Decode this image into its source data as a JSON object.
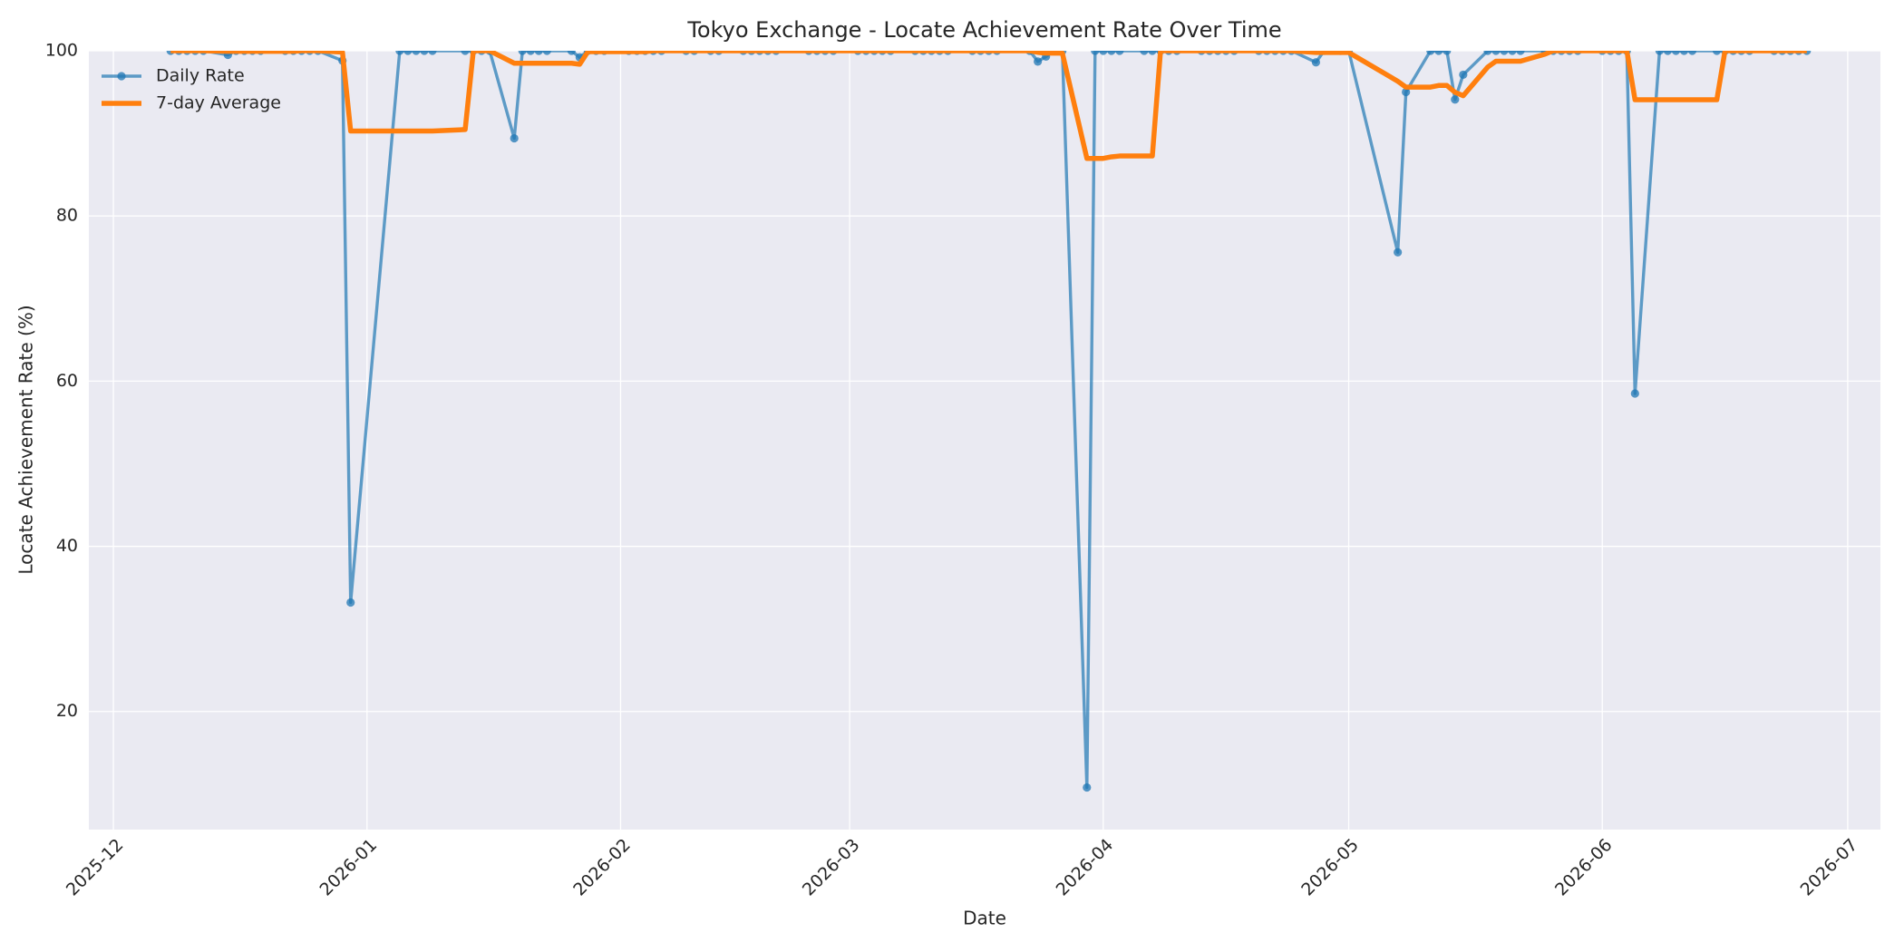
{
  "chart_data": {
    "type": "line",
    "title": "Tokyo Exchange - Locate Achievement Rate Over Time",
    "xlabel": "Date",
    "ylabel": "Locate Achievement Rate (%)",
    "x": [
      "2025-12-08",
      "2025-12-09",
      "2025-12-10",
      "2025-12-11",
      "2025-12-12",
      "2025-12-15",
      "2025-12-16",
      "2025-12-17",
      "2025-12-18",
      "2025-12-19",
      "2025-12-22",
      "2025-12-23",
      "2025-12-24",
      "2025-12-25",
      "2025-12-26",
      "2025-12-29",
      "2025-12-30",
      "2026-01-05",
      "2026-01-06",
      "2026-01-07",
      "2026-01-08",
      "2026-01-09",
      "2026-01-13",
      "2026-01-14",
      "2026-01-15",
      "2026-01-16",
      "2026-01-19",
      "2026-01-20",
      "2026-01-21",
      "2026-01-22",
      "2026-01-23",
      "2026-01-26",
      "2026-01-27",
      "2026-01-28",
      "2026-01-29",
      "2026-01-30",
      "2026-02-02",
      "2026-02-03",
      "2026-02-04",
      "2026-02-05",
      "2026-02-06",
      "2026-02-09",
      "2026-02-10",
      "2026-02-12",
      "2026-02-13",
      "2026-02-16",
      "2026-02-17",
      "2026-02-18",
      "2026-02-19",
      "2026-02-20",
      "2026-02-24",
      "2026-02-25",
      "2026-02-26",
      "2026-02-27",
      "2026-03-02",
      "2026-03-03",
      "2026-03-04",
      "2026-03-05",
      "2026-03-06",
      "2026-03-09",
      "2026-03-10",
      "2026-03-11",
      "2026-03-12",
      "2026-03-13",
      "2026-03-16",
      "2026-03-17",
      "2026-03-18",
      "2026-03-19",
      "2026-03-23",
      "2026-03-24",
      "2026-03-25",
      "2026-03-26",
      "2026-03-27",
      "2026-03-30",
      "2026-03-31",
      "2026-04-01",
      "2026-04-02",
      "2026-04-03",
      "2026-04-06",
      "2026-04-07",
      "2026-04-08",
      "2026-04-09",
      "2026-04-10",
      "2026-04-13",
      "2026-04-14",
      "2026-04-15",
      "2026-04-16",
      "2026-04-17",
      "2026-04-20",
      "2026-04-21",
      "2026-04-22",
      "2026-04-23",
      "2026-04-24",
      "2026-04-27",
      "2026-04-28",
      "2026-04-30",
      "2026-05-01",
      "2026-05-07",
      "2026-05-08",
      "2026-05-11",
      "2026-05-12",
      "2026-05-13",
      "2026-05-14",
      "2026-05-15",
      "2026-05-18",
      "2026-05-19",
      "2026-05-20",
      "2026-05-21",
      "2026-05-22",
      "2026-05-25",
      "2026-05-26",
      "2026-05-27",
      "2026-05-28",
      "2026-05-29",
      "2026-06-01",
      "2026-06-02",
      "2026-06-03",
      "2026-06-04",
      "2026-06-05",
      "2026-06-08",
      "2026-06-09",
      "2026-06-10",
      "2026-06-11",
      "2026-06-12",
      "2026-06-15",
      "2026-06-16",
      "2026-06-17",
      "2026-06-18",
      "2026-06-19",
      "2026-06-22",
      "2026-06-23",
      "2026-06-24",
      "2026-06-25",
      "2026-06-26"
    ],
    "series": [
      {
        "name": "Daily Rate",
        "color": "#1f77b4",
        "marker": true,
        "values": [
          100,
          100,
          100,
          100,
          100,
          99.5,
          100,
          100,
          100,
          100,
          100,
          100,
          100,
          100,
          100,
          98.8,
          33.2,
          100,
          100,
          100,
          100,
          100,
          100,
          100,
          100,
          100,
          89.4,
          100,
          100,
          100,
          100,
          100,
          99.2,
          100,
          100,
          100,
          100,
          100,
          100,
          100,
          100,
          100,
          100,
          100,
          100,
          100,
          100,
          100,
          100,
          100,
          100,
          100,
          100,
          100,
          100,
          100,
          100,
          100,
          100,
          100,
          100,
          100,
          100,
          100,
          100,
          100,
          100,
          100,
          100,
          98.7,
          99.3,
          100,
          100,
          10.8,
          100,
          100,
          100,
          100,
          100,
          100,
          100,
          100,
          100,
          100,
          100,
          100,
          100,
          100,
          100,
          100,
          100,
          100,
          100,
          98.6,
          100,
          100,
          100,
          75.6,
          95,
          100,
          100,
          100,
          94.1,
          97.1,
          100,
          100,
          100,
          100,
          100,
          100,
          100,
          100,
          100,
          100,
          100,
          100,
          100,
          100,
          58.5,
          100,
          100,
          100,
          100,
          100,
          100,
          100,
          100,
          100,
          100,
          100,
          100,
          100,
          100,
          100
        ]
      },
      {
        "name": "7-day Average",
        "color": "#ff7f0e",
        "marker": false,
        "values": [
          100,
          100,
          100,
          100,
          100,
          99.93,
          99.93,
          99.93,
          99.93,
          99.93,
          99.93,
          99.93,
          100,
          100,
          100,
          99.83,
          90.29,
          90.29,
          90.29,
          90.29,
          90.29,
          90.29,
          90.46,
          100,
          100,
          100,
          98.49,
          98.49,
          98.49,
          98.49,
          98.49,
          98.49,
          98.37,
          99.89,
          99.89,
          99.89,
          99.89,
          99.89,
          99.89,
          100,
          100,
          100,
          100,
          100,
          100,
          100,
          100,
          100,
          100,
          100,
          100,
          100,
          100,
          100,
          100,
          100,
          100,
          100,
          100,
          100,
          100,
          100,
          100,
          100,
          100,
          100,
          100,
          100,
          100,
          99.81,
          99.71,
          99.71,
          99.71,
          86.97,
          86.97,
          86.97,
          87.16,
          87.26,
          87.26,
          87.26,
          100,
          100,
          100,
          100,
          100,
          100,
          100,
          100,
          100,
          100,
          100,
          100,
          100,
          99.8,
          99.8,
          99.8,
          99.8,
          96.31,
          95.6,
          95.6,
          95.8,
          95.8,
          94.97,
          94.56,
          98.03,
          98.74,
          98.74,
          98.74,
          98.74,
          99.59,
          100,
          100,
          100,
          100,
          100,
          100,
          100,
          100,
          94.07,
          94.07,
          94.07,
          94.07,
          94.07,
          94.07,
          94.07,
          100,
          100,
          100,
          100,
          100,
          100,
          100,
          100,
          100
        ]
      }
    ],
    "xlim": [
      "2025-11-28",
      "2026-07-05"
    ],
    "xticks": [
      {
        "value": "2025-12-01",
        "label": "2025-12"
      },
      {
        "value": "2026-01-01",
        "label": "2026-01"
      },
      {
        "value": "2026-02-01",
        "label": "2026-02"
      },
      {
        "value": "2026-03-01",
        "label": "2026-03"
      },
      {
        "value": "2026-04-01",
        "label": "2026-04"
      },
      {
        "value": "2026-05-01",
        "label": "2026-05"
      },
      {
        "value": "2026-06-01",
        "label": "2026-06"
      },
      {
        "value": "2026-07-01",
        "label": "2026-07"
      }
    ],
    "ylim": [
      5.7,
      100
    ],
    "yticks": [
      20,
      40,
      60,
      80,
      100
    ],
    "grid": true,
    "legend": "upper left"
  }
}
